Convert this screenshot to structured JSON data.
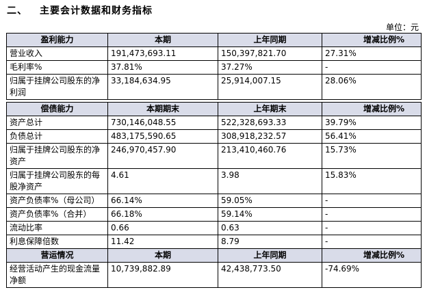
{
  "heading": {
    "number": "二、",
    "title": "主要会计数据和财务指标"
  },
  "unit": "单位：元",
  "profitability": {
    "headers": [
      "盈利能力",
      "本期",
      "上年同期",
      "增减比例%"
    ],
    "rows": [
      [
        "营业收入",
        "191,473,693.11",
        "150,397,821.70",
        "27.31%"
      ],
      [
        "毛利率%",
        "37.81%",
        "37.27%",
        "-"
      ],
      [
        "归属于挂牌公司股东的净利润",
        "33,184,634.95",
        "25,914,007.15",
        "28.06%"
      ]
    ]
  },
  "solvency": {
    "headers": [
      "偿债能力",
      "本期期末",
      "上年期末",
      "增减比例%"
    ],
    "rows": [
      [
        "资产总计",
        "730,146,048.55",
        "522,328,693.33",
        "39.79%"
      ],
      [
        "负债总计",
        "483,175,590.65",
        "308,918,232.57",
        "56.41%"
      ],
      [
        "归属于挂牌公司股东的净资产",
        "246,970,457.90",
        "213,410,460.76",
        "15.73%"
      ],
      [
        "归属于挂牌公司股东的每股净资产",
        "4.61",
        "3.98",
        "15.83%"
      ],
      [
        "资产负债率%（母公司）",
        "66.14%",
        "59.05%",
        "-"
      ],
      [
        "资产负债率%（合并）",
        "66.18%",
        "59.14%",
        "-"
      ],
      [
        "流动比率",
        "0.66",
        "0.63",
        "-"
      ],
      [
        "利息保障倍数",
        "11.42",
        "8.79",
        "-"
      ]
    ]
  },
  "operations": {
    "headers": [
      "营运情况",
      "本期",
      "上年同期",
      "增减比例%"
    ],
    "rows": [
      [
        "经营活动产生的现金流量净额",
        "10,739,882.89",
        "42,438,773.50",
        "-74.69%"
      ]
    ]
  }
}
